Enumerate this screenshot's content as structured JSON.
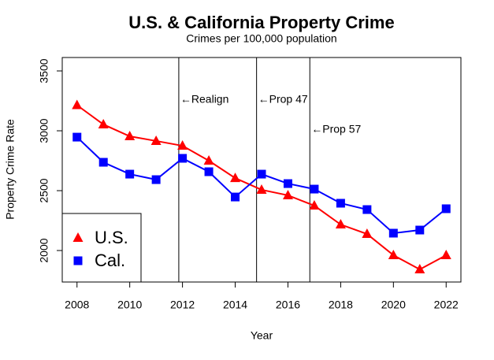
{
  "chart_data": {
    "type": "line",
    "title": "U.S. & California Property Crime",
    "subtitle": "Crimes per 100,000 population",
    "x_label": "Year",
    "y_label": "Property Crime Rate",
    "x": [
      2008,
      2009,
      2010,
      2011,
      2012,
      2013,
      2014,
      2015,
      2016,
      2017,
      2018,
      2019,
      2020,
      2021,
      2022
    ],
    "series": [
      {
        "name": "U.S.",
        "color": "#ff0000",
        "marker": "triangle",
        "values": [
          3214,
          3053,
          2954,
          2915,
          2875,
          2750,
          2605,
          2507,
          2461,
          2375,
          2217,
          2138,
          1961,
          1842,
          1961
        ]
      },
      {
        "name": "Cal.",
        "color": "#0000ff",
        "marker": "square",
        "values": [
          2947,
          2737,
          2638,
          2592,
          2770,
          2658,
          2447,
          2638,
          2559,
          2513,
          2395,
          2342,
          2145,
          2171,
          2349
        ]
      }
    ],
    "annotations": [
      {
        "x": 2011.86,
        "label": "←Realign"
      },
      {
        "x": 2014.81,
        "label": "←Prop 47"
      },
      {
        "x": 2016.83,
        "label": "←Prop 57"
      }
    ],
    "xlim": [
      2007.44,
      2022.56
    ],
    "ylim": [
      1737,
      3612
    ],
    "xticks": [
      2008,
      2010,
      2012,
      2014,
      2016,
      2018,
      2020,
      2022
    ],
    "yticks": [
      2000,
      2500,
      3000,
      3500
    ],
    "legend": "bottomleft",
    "grid": false
  }
}
